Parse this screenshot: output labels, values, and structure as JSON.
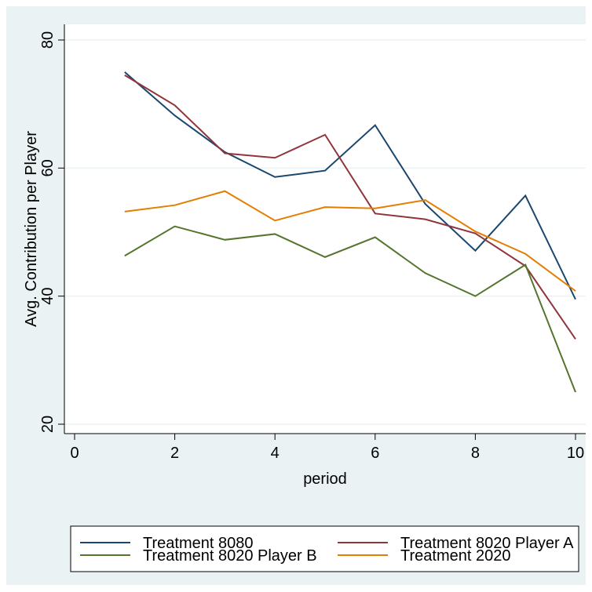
{
  "chart_data": {
    "type": "line",
    "title": "",
    "xlabel": "period",
    "ylabel": "Avg. Contribution per Player",
    "xlim": [
      0,
      10
    ],
    "ylim": [
      20,
      80
    ],
    "x_ticks": [
      0,
      2,
      4,
      6,
      8,
      10
    ],
    "y_ticks": [
      20,
      40,
      60,
      80
    ],
    "grid": "horizontal",
    "legend_position": "bottom",
    "x": [
      1,
      2,
      3,
      4,
      5,
      6,
      7,
      8,
      9,
      10
    ],
    "series": [
      {
        "name": "Treatment 8080",
        "color": "#1a476f",
        "values": [
          75.0,
          68.2,
          62.5,
          58.6,
          59.6,
          66.7,
          54.4,
          47.1,
          55.7,
          39.5
        ]
      },
      {
        "name": "Treatment 8020 Player A",
        "color": "#90353b",
        "values": [
          74.5,
          69.8,
          62.3,
          61.6,
          65.2,
          52.9,
          52.0,
          49.8,
          44.7,
          33.3
        ]
      },
      {
        "name": "Treatment 8020 Player B",
        "color": "#55752f",
        "values": [
          46.3,
          50.9,
          48.8,
          49.7,
          46.1,
          49.2,
          43.6,
          40.0,
          44.9,
          25.0
        ]
      },
      {
        "name": "Treatment 2020",
        "color": "#e37e00",
        "values": [
          53.2,
          54.2,
          56.4,
          51.8,
          53.9,
          53.7,
          55.0,
          50.1,
          46.6,
          40.8
        ]
      }
    ]
  }
}
